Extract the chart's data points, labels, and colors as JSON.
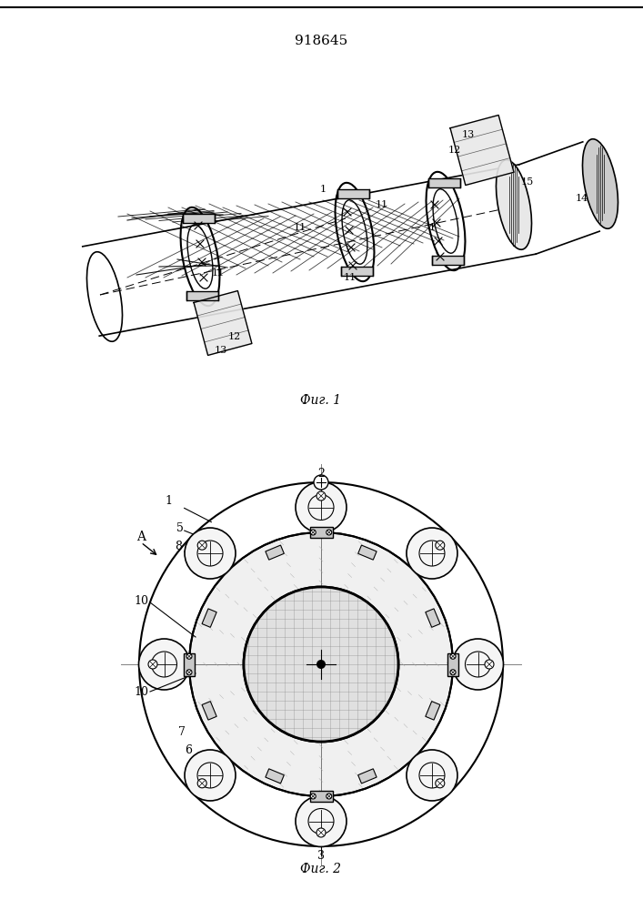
{
  "patent_number": "918645",
  "fig1_caption": "Фиг. 1",
  "fig2_caption": "Фиг. 2",
  "bg_color": "#ffffff",
  "line_color": "#000000",
  "line_color_light": "#555555",
  "hatch_color": "#333333"
}
